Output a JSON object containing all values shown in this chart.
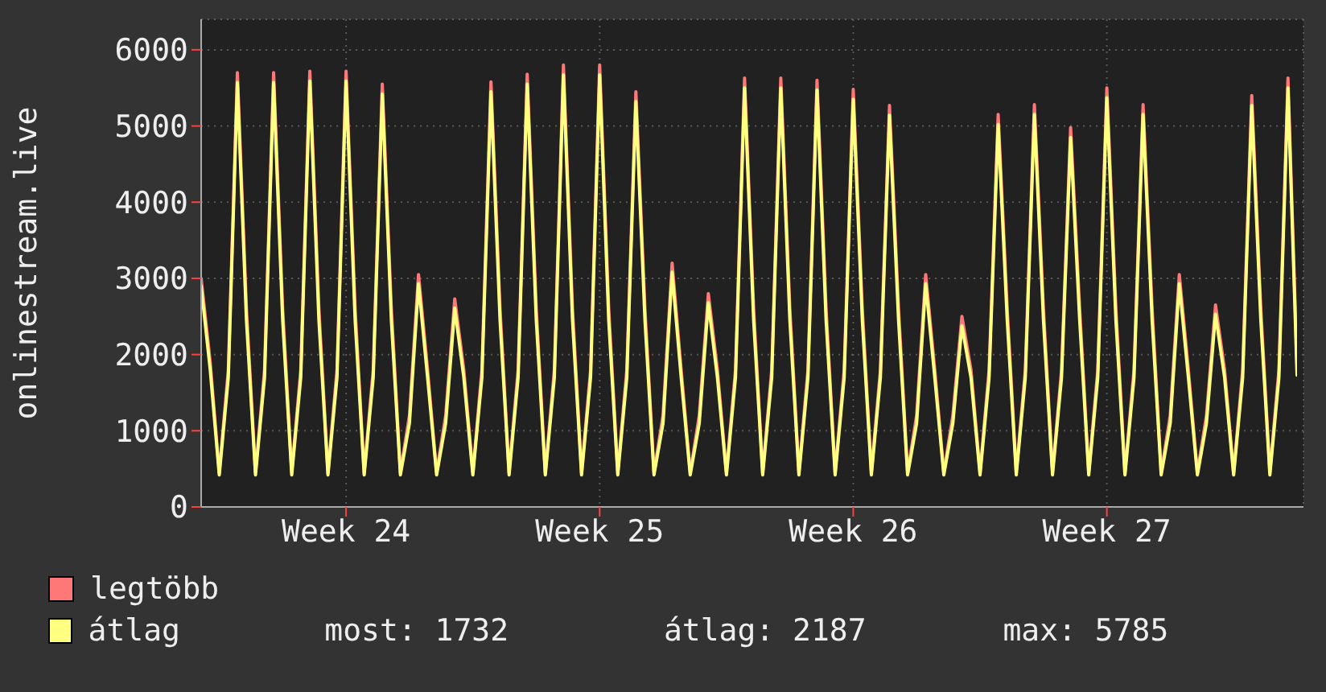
{
  "chart_data": {
    "type": "line",
    "ylabel": "onlinestream.live",
    "categories": [
      null,
      null,
      null,
      null,
      null,
      null,
      null,
      null,
      null,
      null,
      null,
      null,
      null,
      null,
      null,
      null,
      "Week 24",
      null,
      null,
      null,
      null,
      null,
      null,
      null,
      null,
      null,
      null,
      null,
      null,
      null,
      null,
      null,
      null,
      null,
      null,
      null,
      null,
      null,
      null,
      null,
      null,
      null,
      null,
      null,
      "Week 25",
      null,
      null,
      null,
      null,
      null,
      null,
      null,
      null,
      null,
      null,
      null,
      null,
      null,
      null,
      null,
      null,
      null,
      null,
      null,
      null,
      null,
      null,
      null,
      null,
      null,
      null,
      null,
      "Week 26",
      null,
      null,
      null,
      null,
      null,
      null,
      null,
      null,
      null,
      null,
      null,
      null,
      null,
      null,
      null,
      null,
      null,
      null,
      null,
      null,
      null,
      null,
      null,
      null,
      null,
      null,
      null,
      "Week 27",
      null,
      null,
      null,
      null,
      null,
      null,
      null,
      null,
      null,
      null,
      null,
      null,
      null,
      null,
      null,
      null,
      null,
      null,
      null,
      null,
      null
    ],
    "series": [
      {
        "name": "legtöbb",
        "color": "#ff7878",
        "values": [
          3000,
          1900,
          450,
          1800,
          5700,
          2600,
          450,
          1800,
          5700,
          2600,
          450,
          1800,
          5720,
          2600,
          450,
          1800,
          5720,
          2600,
          450,
          1800,
          5550,
          2600,
          450,
          1200,
          3050,
          1800,
          450,
          1200,
          2730,
          1800,
          450,
          1800,
          5580,
          2600,
          450,
          1800,
          5680,
          2600,
          450,
          1800,
          5800,
          2600,
          450,
          1800,
          5800,
          2600,
          450,
          1800,
          5450,
          2600,
          450,
          1200,
          3200,
          1800,
          450,
          1200,
          2800,
          1800,
          450,
          1800,
          5630,
          2600,
          450,
          1800,
          5630,
          2600,
          450,
          1800,
          5600,
          2600,
          450,
          1800,
          5480,
          2600,
          450,
          1800,
          5270,
          2600,
          450,
          1200,
          3050,
          1800,
          450,
          1200,
          2500,
          1800,
          450,
          1800,
          5150,
          2600,
          450,
          1800,
          5280,
          2600,
          450,
          1800,
          4980,
          2600,
          450,
          1800,
          5500,
          2600,
          450,
          1800,
          5280,
          2600,
          450,
          1200,
          3050,
          1800,
          450,
          1200,
          2650,
          1800,
          450,
          1800,
          5400,
          2600,
          450,
          1800,
          5630,
          1850
        ]
      },
      {
        "name": "átlag",
        "color": "#ffff80",
        "values": [
          2900,
          1800,
          420,
          1700,
          5570,
          2450,
          420,
          1700,
          5570,
          2450,
          420,
          1700,
          5590,
          2450,
          420,
          1700,
          5590,
          2450,
          420,
          1700,
          5420,
          2450,
          420,
          1100,
          2930,
          1700,
          420,
          1100,
          2610,
          1700,
          420,
          1700,
          5450,
          2450,
          420,
          1700,
          5550,
          2450,
          420,
          1700,
          5670,
          2450,
          420,
          1700,
          5670,
          2450,
          420,
          1700,
          5320,
          2450,
          420,
          1100,
          3080,
          1700,
          420,
          1100,
          2680,
          1700,
          420,
          1700,
          5500,
          2450,
          420,
          1700,
          5500,
          2450,
          420,
          1700,
          5470,
          2450,
          420,
          1700,
          5350,
          2450,
          420,
          1700,
          5140,
          2450,
          420,
          1100,
          2930,
          1700,
          420,
          1100,
          2380,
          1700,
          420,
          1700,
          5020,
          2450,
          420,
          1700,
          5150,
          2450,
          420,
          1700,
          4850,
          2450,
          420,
          1700,
          5370,
          2450,
          420,
          1700,
          5150,
          2450,
          420,
          1100,
          2930,
          1700,
          420,
          1100,
          2530,
          1700,
          420,
          1700,
          5270,
          2450,
          420,
          1700,
          5500,
          1730
        ]
      }
    ],
    "ylim": [
      0,
      6400
    ],
    "yticks": [
      0,
      1000,
      2000,
      3000,
      4000,
      5000,
      6000
    ],
    "grid": true,
    "legend": "bottom",
    "marker": "none",
    "line_style": "solid",
    "annotations": [
      "most: 1732",
      "átlag: 2187",
      "max: 5785"
    ]
  }
}
